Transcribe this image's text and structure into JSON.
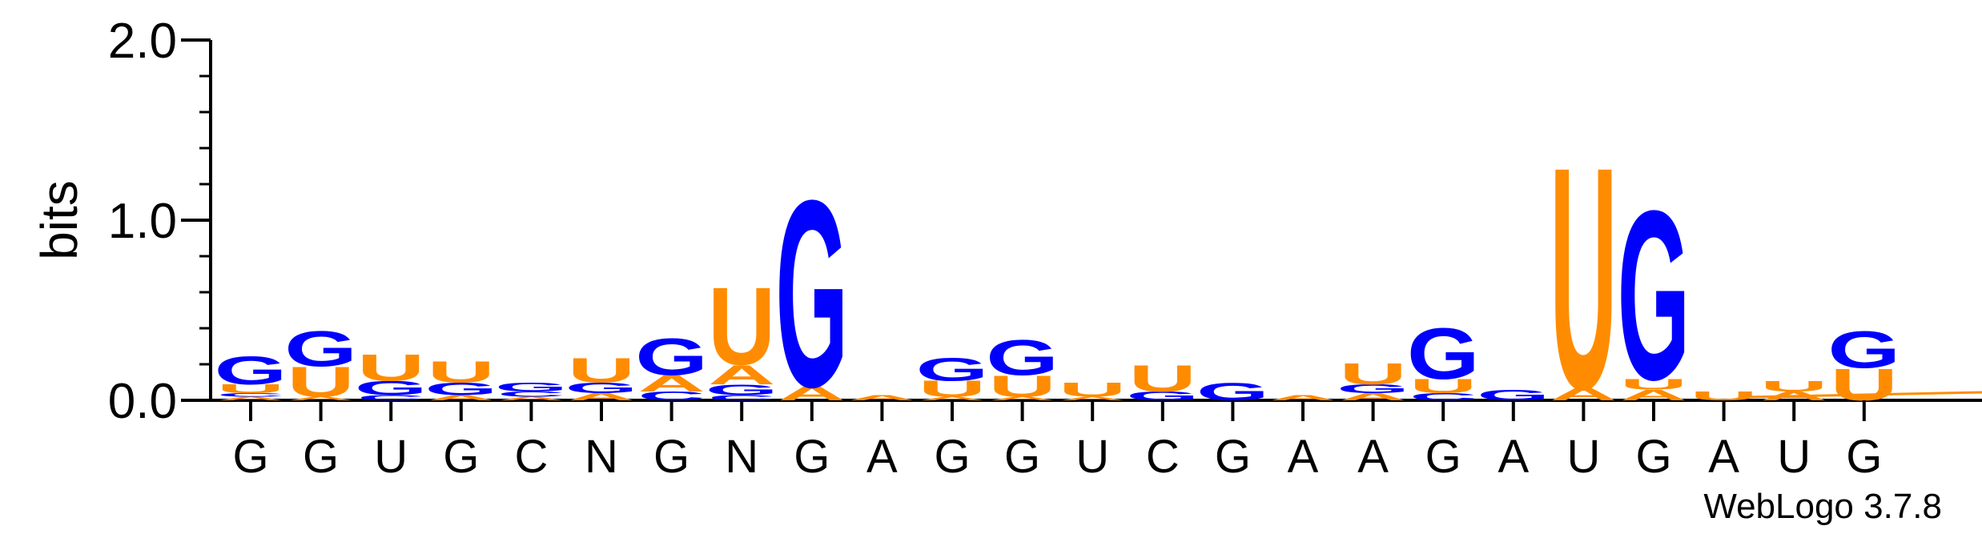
{
  "chart_data": {
    "type": "sequence-logo",
    "title": "",
    "ylabel": "bits",
    "xlabel": "",
    "ylim": [
      0,
      2.0
    ],
    "yticks": [
      "0.0",
      "1.0",
      "2.0"
    ],
    "credit": "WebLogo 3.7.8",
    "colors": {
      "G": "#0000ff",
      "U": "#ff8c00",
      "A": "#ff8c00",
      "C": "#0000ff"
    },
    "positions": [
      {
        "label": "G",
        "stack": [
          [
            "A",
            0.02
          ],
          [
            "C",
            0.02
          ],
          [
            "U",
            0.05
          ],
          [
            "G",
            0.16
          ]
        ]
      },
      {
        "label": "G",
        "stack": [
          [
            "A",
            0.02
          ],
          [
            "U",
            0.17
          ],
          [
            "G",
            0.2
          ]
        ]
      },
      {
        "label": "U",
        "stack": [
          [
            "C",
            0.03
          ],
          [
            "G",
            0.08
          ],
          [
            "U",
            0.15
          ]
        ]
      },
      {
        "label": "G",
        "stack": [
          [
            "A",
            0.03
          ],
          [
            "G",
            0.07
          ],
          [
            "U",
            0.12
          ]
        ]
      },
      {
        "label": "C",
        "stack": [
          [
            "A",
            0.02
          ],
          [
            "C",
            0.03
          ],
          [
            "G",
            0.05
          ]
        ]
      },
      {
        "label": "N",
        "stack": [
          [
            "A",
            0.04
          ],
          [
            "G",
            0.06
          ],
          [
            "U",
            0.14
          ]
        ]
      },
      {
        "label": "G",
        "stack": [
          [
            "C",
            0.05
          ],
          [
            "A",
            0.09
          ],
          [
            "G",
            0.21
          ]
        ]
      },
      {
        "label": "N",
        "stack": [
          [
            "C",
            0.03
          ],
          [
            "G",
            0.06
          ],
          [
            "A",
            0.11
          ],
          [
            "U",
            0.44
          ]
        ]
      },
      {
        "label": "G",
        "stack": [
          [
            "A",
            0.08
          ],
          [
            "G",
            1.06
          ]
        ]
      },
      {
        "label": "A",
        "stack": [
          [
            "A",
            0.03
          ]
        ]
      },
      {
        "label": "G",
        "stack": [
          [
            "A",
            0.02
          ],
          [
            "U",
            0.09
          ],
          [
            "G",
            0.13
          ]
        ]
      },
      {
        "label": "G",
        "stack": [
          [
            "A",
            0.02
          ],
          [
            "U",
            0.12
          ],
          [
            "G",
            0.2
          ]
        ]
      },
      {
        "label": "U",
        "stack": [
          [
            "A",
            0.02
          ],
          [
            "U",
            0.08
          ]
        ]
      },
      {
        "label": "C",
        "stack": [
          [
            "G",
            0.05
          ],
          [
            "U",
            0.15
          ]
        ]
      },
      {
        "label": "G",
        "stack": [
          [
            "G",
            0.1
          ]
        ]
      },
      {
        "label": "A",
        "stack": [
          [
            "A",
            0.03
          ]
        ]
      },
      {
        "label": "A",
        "stack": [
          [
            "A",
            0.04
          ],
          [
            "G",
            0.05
          ],
          [
            "U",
            0.12
          ]
        ]
      },
      {
        "label": "G",
        "stack": [
          [
            "C",
            0.04
          ],
          [
            "U",
            0.08
          ],
          [
            "G",
            0.29
          ]
        ]
      },
      {
        "label": "A",
        "stack": [
          [
            "G",
            0.06
          ]
        ]
      },
      {
        "label": "U",
        "stack": [
          [
            "A",
            0.07
          ],
          [
            "U",
            1.26
          ]
        ]
      },
      {
        "label": "G",
        "stack": [
          [
            "A",
            0.06
          ],
          [
            "U",
            0.06
          ],
          [
            "G",
            0.96
          ]
        ]
      },
      {
        "label": "A",
        "stack": [
          [
            "U",
            0.05
          ]
        ]
      },
      {
        "label": "U",
        "stack": [
          [
            "A",
            0.05
          ],
          [
            "U",
            0.06
          ]
        ]
      },
      {
        "label": "G",
        "stack": [
          [
            "U",
            0.18
          ],
          [
            "G",
            0.21
          ]
        ]
      }
    ]
  }
}
